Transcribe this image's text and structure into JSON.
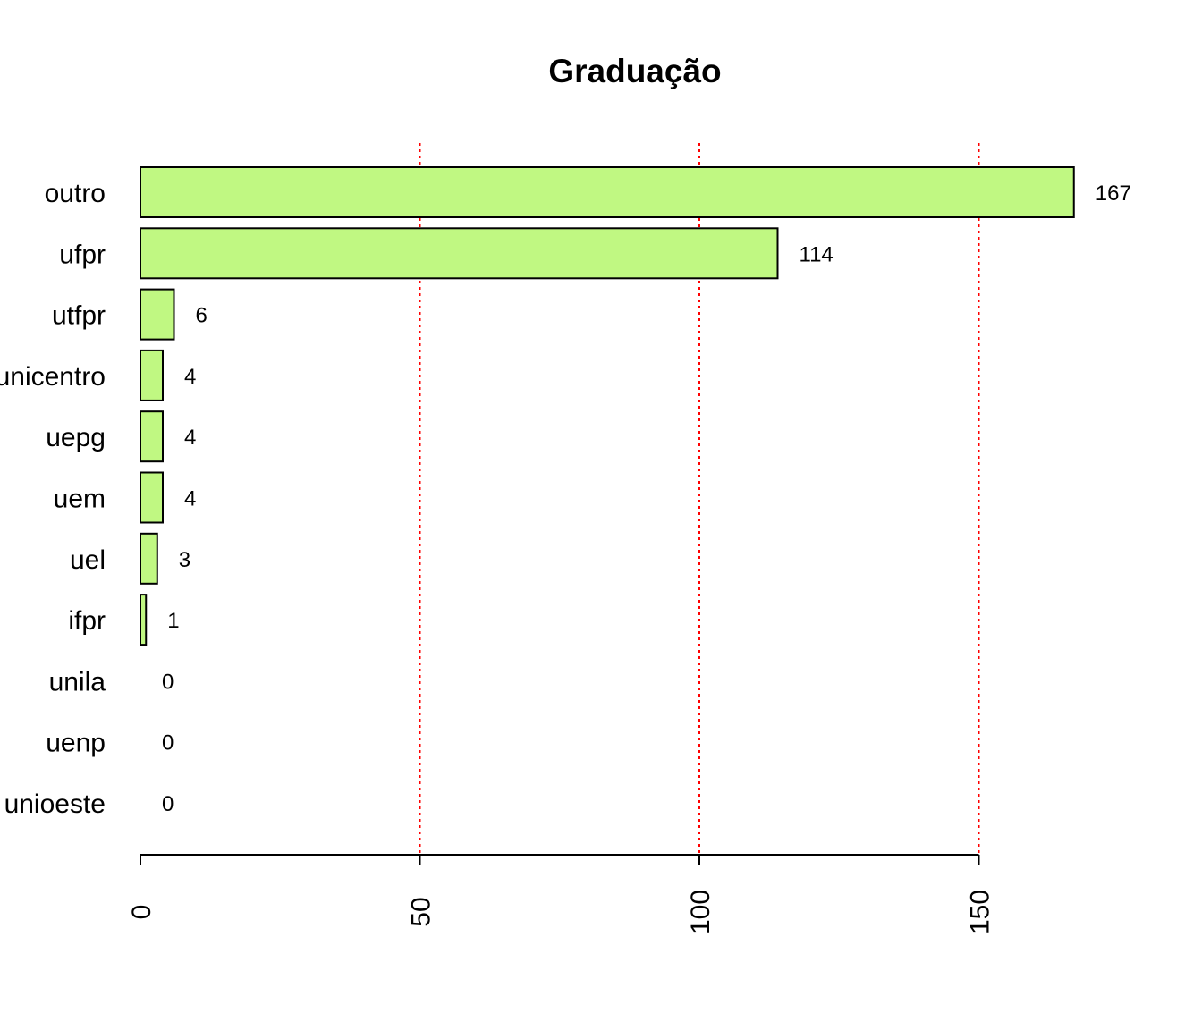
{
  "chart_data": {
    "type": "bar",
    "orientation": "horizontal",
    "title": "Graduação",
    "xlabel": "",
    "ylabel": "",
    "categories": [
      "unioeste",
      "uenp",
      "unila",
      "ifpr",
      "uel",
      "uem",
      "uepg",
      "unicentro",
      "utfpr",
      "ufpr",
      "outro"
    ],
    "values": [
      0,
      0,
      0,
      1,
      3,
      4,
      4,
      4,
      6,
      114,
      167
    ],
    "data_labels": [
      "0",
      "0",
      "0",
      "1",
      "3",
      "4",
      "4",
      "4",
      "6",
      "114",
      "167"
    ],
    "xlim": [
      0,
      167
    ],
    "x_ticks": [
      0,
      50,
      100,
      150
    ],
    "x_tick_labels": [
      "0",
      "50",
      "100",
      "150"
    ],
    "gridlines": {
      "x_values": [
        50,
        100,
        150
      ],
      "color": "#ff0000",
      "style": "dotted"
    },
    "bar_color": "#c0f882",
    "bar_border_color": "#000000",
    "legend": "none"
  }
}
